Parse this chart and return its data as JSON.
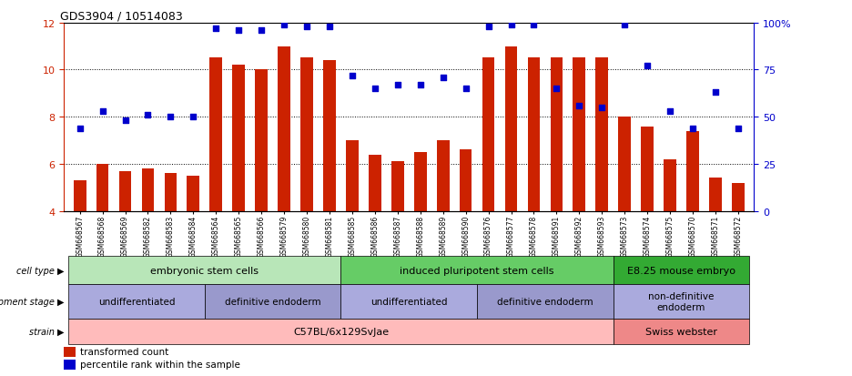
{
  "title": "GDS3904 / 10514083",
  "samples": [
    "GSM668567",
    "GSM668568",
    "GSM668569",
    "GSM668582",
    "GSM668583",
    "GSM668584",
    "GSM668564",
    "GSM668565",
    "GSM668566",
    "GSM668579",
    "GSM668580",
    "GSM668581",
    "GSM668585",
    "GSM668586",
    "GSM668587",
    "GSM668588",
    "GSM668589",
    "GSM668590",
    "GSM668576",
    "GSM668577",
    "GSM668578",
    "GSM668591",
    "GSM668592",
    "GSM668593",
    "GSM668573",
    "GSM668574",
    "GSM668575",
    "GSM668570",
    "GSM668571",
    "GSM668572"
  ],
  "bar_values": [
    5.3,
    6.0,
    5.7,
    5.8,
    5.6,
    5.5,
    10.5,
    10.2,
    10.0,
    11.0,
    10.5,
    10.4,
    7.0,
    6.4,
    6.1,
    6.5,
    7.0,
    6.6,
    10.5,
    11.0,
    10.5,
    10.5,
    10.5,
    10.5,
    8.0,
    7.6,
    6.2,
    7.4,
    5.4,
    5.2
  ],
  "dot_values_pct": [
    44,
    53,
    48,
    51,
    50,
    50,
    97,
    96,
    96,
    99,
    98,
    98,
    72,
    65,
    67,
    67,
    71,
    65,
    98,
    99,
    99,
    65,
    56,
    55,
    99,
    77,
    53,
    44,
    63,
    44
  ],
  "bar_color": "#cc2200",
  "dot_color": "#0000cc",
  "ylim_left": [
    4,
    12
  ],
  "ylim_right": [
    0,
    100
  ],
  "yticks_left": [
    4,
    6,
    8,
    10,
    12
  ],
  "yticks_right": [
    0,
    25,
    50,
    75,
    100
  ],
  "cell_type_groups": [
    {
      "label": "embryonic stem cells",
      "start": 0,
      "end": 12,
      "color": "#b8e6b8"
    },
    {
      "label": "induced pluripotent stem cells",
      "start": 12,
      "end": 24,
      "color": "#66cc66"
    },
    {
      "label": "E8.25 mouse embryo",
      "start": 24,
      "end": 30,
      "color": "#33aa33"
    }
  ],
  "dev_stage_groups": [
    {
      "label": "undifferentiated",
      "start": 0,
      "end": 6,
      "color": "#aaaadd"
    },
    {
      "label": "definitive endoderm",
      "start": 6,
      "end": 12,
      "color": "#9999cc"
    },
    {
      "label": "undifferentiated",
      "start": 12,
      "end": 18,
      "color": "#aaaadd"
    },
    {
      "label": "definitive endoderm",
      "start": 18,
      "end": 24,
      "color": "#9999cc"
    },
    {
      "label": "non-definitive\nendoderm",
      "start": 24,
      "end": 30,
      "color": "#aaaadd"
    }
  ],
  "strain_groups": [
    {
      "label": "C57BL/6x129SvJae",
      "start": 0,
      "end": 24,
      "color": "#ffbbbb"
    },
    {
      "label": "Swiss webster",
      "start": 24,
      "end": 30,
      "color": "#ee8888"
    }
  ],
  "legend_items": [
    {
      "label": "transformed count",
      "color": "#cc2200"
    },
    {
      "label": "percentile rank within the sample",
      "color": "#0000cc"
    }
  ]
}
